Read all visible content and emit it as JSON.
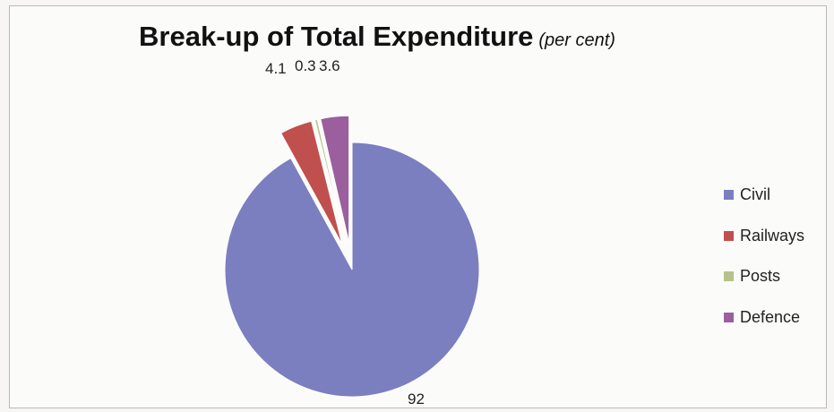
{
  "chart_data": {
    "type": "pie",
    "title": "Break-up of Total Expenditure",
    "subtitle": "(per cent)",
    "exploded": true,
    "legend_position": "right",
    "series": [
      {
        "name": "Civil",
        "value": 92,
        "label": "92",
        "color": "#7b7fc0"
      },
      {
        "name": "Railways",
        "value": 4.1,
        "label": "4.1",
        "color": "#c0504d"
      },
      {
        "name": "Posts",
        "value": 0.3,
        "label": "0.3",
        "color": "#b7c28a"
      },
      {
        "name": "Defence",
        "value": 3.6,
        "label": "3.6",
        "color": "#9b5f9e"
      }
    ]
  }
}
